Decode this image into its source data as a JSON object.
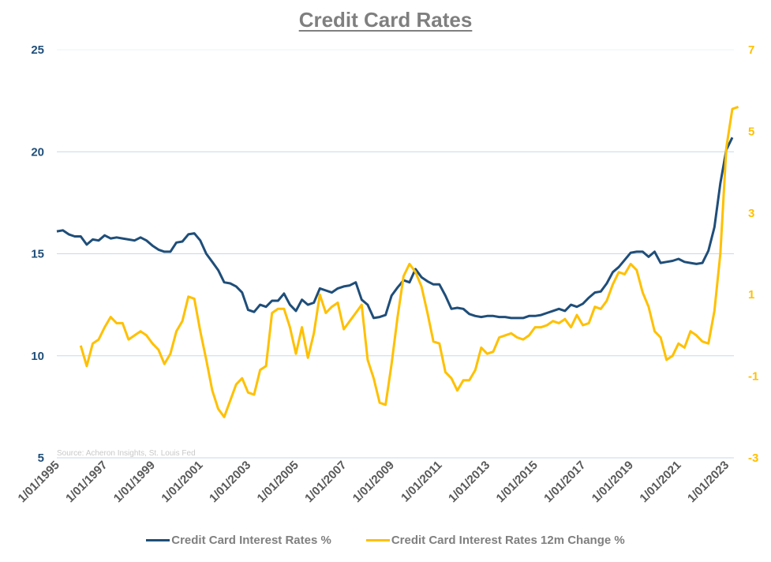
{
  "chart_data": {
    "type": "line",
    "title": "Credit Card Rates",
    "source_note": "Source: Acheron Insights, St. Louis Fed",
    "xlabel": "",
    "ylabel_left": "",
    "ylabel_right": "",
    "x_tick_labels": [
      "1/01/1995",
      "1/01/1997",
      "1/01/1999",
      "1/01/2001",
      "1/01/2003",
      "1/01/2005",
      "1/01/2007",
      "1/01/2009",
      "1/01/2011",
      "1/01/2013",
      "1/01/2015",
      "1/01/2017",
      "1/01/2019",
      "1/01/2021",
      "1/01/2023"
    ],
    "x_start": "1995-Q1",
    "frequency": "quarterly",
    "ylim_left": [
      5,
      25
    ],
    "yticks_left": [
      25,
      20,
      15,
      10,
      5
    ],
    "ylim_right": [
      -3,
      7
    ],
    "yticks_right": [
      7,
      5,
      3,
      1,
      -1,
      -3
    ],
    "grid": true,
    "legend_position": "bottom",
    "series": [
      {
        "name": "Credit Card Interest Rates %",
        "axis": "left",
        "color": "#1f4e79",
        "start_index": 0,
        "values": [
          16.1,
          16.15,
          15.95,
          15.85,
          15.85,
          15.45,
          15.7,
          15.65,
          15.9,
          15.75,
          15.8,
          15.75,
          15.7,
          15.65,
          15.8,
          15.65,
          15.4,
          15.2,
          15.1,
          15.1,
          15.55,
          15.6,
          15.95,
          16.0,
          15.65,
          15.0,
          14.6,
          14.2,
          13.6,
          13.55,
          13.4,
          13.1,
          12.25,
          12.15,
          12.5,
          12.4,
          12.7,
          12.7,
          13.05,
          12.5,
          12.2,
          12.75,
          12.5,
          12.6,
          13.3,
          13.2,
          13.1,
          13.3,
          13.4,
          13.45,
          13.6,
          12.75,
          12.5,
          11.85,
          11.9,
          12.0,
          12.95,
          13.35,
          13.7,
          13.6,
          14.25,
          13.85,
          13.65,
          13.5,
          13.5,
          12.95,
          12.3,
          12.35,
          12.3,
          12.05,
          11.95,
          11.9,
          11.95,
          11.95,
          11.9,
          11.9,
          11.85,
          11.85,
          11.85,
          11.95,
          11.95,
          12.0,
          12.1,
          12.2,
          12.3,
          12.2,
          12.5,
          12.4,
          12.55,
          12.85,
          13.1,
          13.15,
          13.55,
          14.1,
          14.35,
          14.7,
          15.05,
          15.1,
          15.1,
          14.85,
          15.1,
          14.55,
          14.6,
          14.65,
          14.75,
          14.6,
          14.55,
          14.5,
          14.55,
          15.15,
          16.3,
          18.45,
          20.1,
          20.7
        ]
      },
      {
        "name": "Credit Card Interest Rates 12m Change %",
        "axis": "right",
        "color": "#ffc000",
        "start_index": 4,
        "values": [
          -0.25,
          -0.75,
          -0.2,
          -0.1,
          0.2,
          0.45,
          0.3,
          0.3,
          -0.1,
          0.0,
          0.1,
          0.0,
          -0.2,
          -0.35,
          -0.7,
          -0.45,
          0.1,
          0.35,
          0.95,
          0.9,
          0.1,
          -0.6,
          -1.35,
          -1.8,
          -2.0,
          -1.6,
          -1.2,
          -1.05,
          -1.4,
          -1.45,
          -0.85,
          -0.75,
          0.55,
          0.65,
          0.65,
          0.2,
          -0.45,
          0.2,
          -0.55,
          0.05,
          1.0,
          0.55,
          0.7,
          0.8,
          0.15,
          0.35,
          0.55,
          0.75,
          -0.6,
          -1.05,
          -1.65,
          -1.7,
          -0.7,
          0.45,
          1.45,
          1.75,
          1.55,
          1.2,
          0.55,
          -0.15,
          -0.2,
          -0.9,
          -1.05,
          -1.35,
          -1.1,
          -1.1,
          -0.85,
          -0.3,
          -0.45,
          -0.4,
          -0.05,
          0.0,
          0.05,
          -0.05,
          -0.1,
          0.0,
          0.2,
          0.2,
          0.25,
          0.35,
          0.3,
          0.4,
          0.2,
          0.5,
          0.25,
          0.3,
          0.7,
          0.65,
          0.85,
          1.25,
          1.55,
          1.5,
          1.75,
          1.6,
          1.05,
          0.7,
          0.1,
          -0.05,
          -0.6,
          -0.5,
          -0.2,
          -0.3,
          0.1,
          0.0,
          -0.15,
          -0.2,
          0.6,
          2.0,
          4.6,
          5.55,
          5.6
        ]
      }
    ]
  },
  "legend": {
    "items": [
      {
        "label": "Credit Card Interest Rates %",
        "color": "#1f4e79"
      },
      {
        "label": "Credit Card Interest Rates 12m Change %",
        "color": "#ffc000"
      }
    ]
  }
}
